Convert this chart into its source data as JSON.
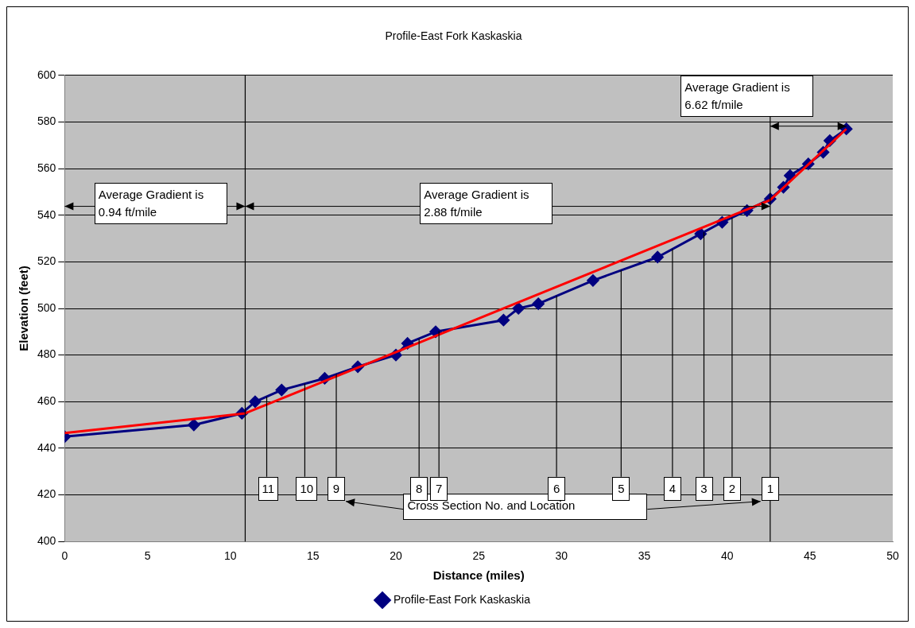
{
  "chart_data": {
    "type": "line",
    "title": "Profile-East Fork Kaskaskia",
    "xlabel": "Distance (miles)",
    "ylabel": "Elevation (feet)",
    "xlim": [
      0,
      50
    ],
    "xticks": [
      0,
      5,
      10,
      15,
      20,
      25,
      30,
      35,
      40,
      45,
      50
    ],
    "ylim": [
      400,
      600
    ],
    "yticks": [
      400,
      420,
      440,
      460,
      480,
      500,
      520,
      540,
      560,
      580,
      600
    ],
    "grid": "y",
    "legend": "bottom",
    "series": [
      {
        "name": "Profile-East Fork Kaskaskia",
        "color": "#000080",
        "marker": "diamond",
        "x": [
          0,
          7.8,
          10.7,
          11.5,
          13.1,
          15.7,
          17.7,
          20.0,
          20.7,
          22.4,
          26.5,
          27.4,
          28.6,
          31.9,
          35.8,
          38.4,
          39.7,
          41.2,
          42.6,
          43.4,
          43.8,
          44.9,
          45.8,
          46.2,
          47.2
        ],
        "values": [
          445,
          450,
          455,
          460,
          465,
          470,
          475,
          480,
          485,
          490,
          495,
          500,
          502,
          512,
          522,
          532,
          537,
          542,
          547,
          552,
          557,
          562,
          567,
          572,
          577
        ]
      },
      {
        "type": "line",
        "color": "#ff0000",
        "marker": "none",
        "x": [
          0,
          10.9,
          42.6,
          47.2
        ],
        "values": [
          446.5,
          455,
          546.5,
          577
        ]
      }
    ],
    "ref_lines": [
      {
        "axis": "x",
        "value": 10.9,
        "color": "#000000"
      },
      {
        "axis": "x",
        "value": 42.6,
        "color": "#000000"
      },
      {
        "axis": "x",
        "value": 12.2
      },
      {
        "axis": "x",
        "value": 14.5
      },
      {
        "axis": "x",
        "value": 16.4
      },
      {
        "axis": "x",
        "value": 21.4
      },
      {
        "axis": "x",
        "value": 22.6
      },
      {
        "axis": "x",
        "value": 29.7
      },
      {
        "axis": "x",
        "value": 33.6
      },
      {
        "axis": "x",
        "value": 36.7
      },
      {
        "axis": "x",
        "value": 38.6
      },
      {
        "axis": "x",
        "value": 40.3
      }
    ],
    "annotations": [
      "Average Gradient is\n0.94 ft/mile",
      "Average Gradient is\n2.88 ft/mile",
      "Average Gradient is\n6.62 ft/mile",
      "11",
      "10",
      "9",
      "8",
      "7",
      "6",
      "5",
      "4",
      "3",
      "2",
      "1",
      "Cross Section No. and Location"
    ]
  }
}
